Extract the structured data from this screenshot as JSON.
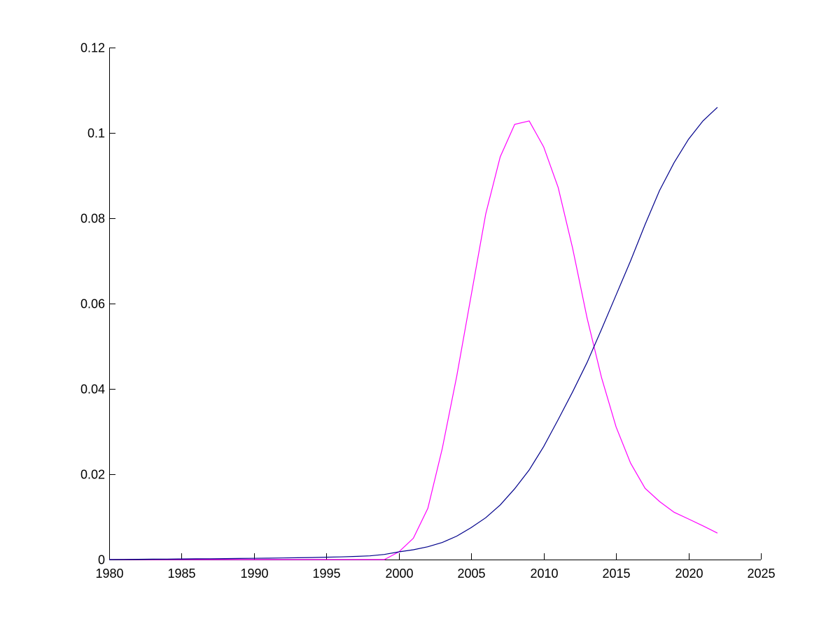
{
  "chart_data": {
    "type": "line",
    "title": "",
    "xlabel": "",
    "ylabel": "",
    "xlim": [
      1980,
      2025
    ],
    "ylim": [
      0,
      0.12
    ],
    "grid": false,
    "xticks": [
      "1980",
      "1985",
      "1990",
      "1995",
      "2000",
      "2005",
      "2010",
      "2015",
      "2020",
      "2025"
    ],
    "yticks": [
      "0",
      "0.02",
      "0.04",
      "0.06",
      "0.08",
      "0.1",
      "0.12"
    ],
    "x": [
      1980,
      1981,
      1982,
      1983,
      1984,
      1985,
      1986,
      1987,
      1988,
      1989,
      1990,
      1991,
      1992,
      1993,
      1994,
      1995,
      1996,
      1997,
      1998,
      1999,
      2000,
      2001,
      2002,
      2003,
      2004,
      2005,
      2006,
      2007,
      2008,
      2009,
      2010,
      2011,
      2012,
      2013,
      2014,
      2015,
      2016,
      2017,
      2018,
      2019,
      2020,
      2021,
      2022
    ],
    "series": [
      {
        "color": "#FF00FF",
        "values": [
          0,
          0,
          0,
          0,
          0,
          0,
          0,
          0,
          0,
          0,
          0,
          0,
          0,
          0,
          0,
          0,
          0,
          0,
          0,
          0,
          0.0018,
          0.005,
          0.012,
          0.026,
          0.043,
          0.062,
          0.081,
          0.0944,
          0.102,
          0.1028,
          0.0967,
          0.0872,
          0.073,
          0.0566,
          0.0426,
          0.0311,
          0.0226,
          0.0167,
          0.0136,
          0.0111,
          0.0095,
          0.0079,
          0.0062
        ]
      },
      {
        "color": "#00008B",
        "values": [
          0,
          3e-05,
          6e-05,
          0.0001,
          0.00012,
          0.00015,
          0.00018,
          0.0002,
          0.00023,
          0.00026,
          0.0003,
          0.00033,
          0.00037,
          0.00042,
          0.00048,
          0.00055,
          0.00063,
          0.00073,
          0.00087,
          0.0012,
          0.0018,
          0.0023,
          0.003,
          0.004,
          0.0055,
          0.0075,
          0.0098,
          0.0128,
          0.0166,
          0.021,
          0.0265,
          0.0328,
          0.0393,
          0.0462,
          0.054,
          0.062,
          0.07,
          0.0785,
          0.0865,
          0.093,
          0.0985,
          0.1028,
          0.106
        ]
      }
    ]
  }
}
